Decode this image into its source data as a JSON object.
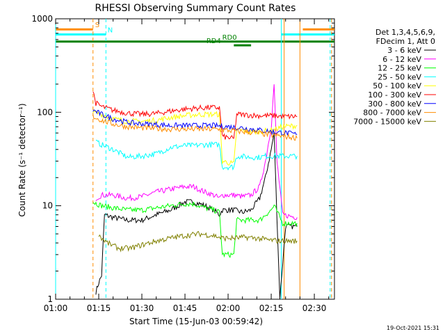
{
  "chart_data": {
    "type": "line",
    "title": "RHESSI Observing Summary Count Rates",
    "xlabel": "Start Time (15-Jun-03 00:59:42)",
    "ylabel": "Count Rate (s⁻¹ detector⁻¹)",
    "yscale": "log",
    "ylim": [
      1,
      1000
    ],
    "xlim_minutes": [
      0,
      97
    ],
    "x_ticks": [
      {
        "minute": 0,
        "label": "01:00"
      },
      {
        "minute": 15,
        "label": "01:15"
      },
      {
        "minute": 30,
        "label": "01:30"
      },
      {
        "minute": 45,
        "label": "01:45"
      },
      {
        "minute": 60,
        "label": "02:00"
      },
      {
        "minute": 75,
        "label": "02:15"
      },
      {
        "minute": 90,
        "label": "02:30"
      }
    ],
    "y_ticks": [
      {
        "value": 1,
        "label": "1"
      },
      {
        "value": 10,
        "label": "10"
      },
      {
        "value": 100,
        "label": "100"
      },
      {
        "value": 1000,
        "label": "1000"
      }
    ],
    "legend_header": [
      "Det 1,3,4,5,6,9,",
      "FDecim 1, Att 0"
    ],
    "series": [
      {
        "name": "3 - 6 keV",
        "color": "#000000",
        "points": [
          [
            14,
            1.2
          ],
          [
            15,
            1.5
          ],
          [
            16,
            1.8
          ],
          [
            17,
            8
          ],
          [
            20,
            7.5
          ],
          [
            25,
            7
          ],
          [
            30,
            7
          ],
          [
            35,
            8
          ],
          [
            40,
            9
          ],
          [
            45,
            11
          ],
          [
            48,
            11
          ],
          [
            52,
            10
          ],
          [
            55,
            9
          ],
          [
            57,
            8
          ],
          [
            58,
            9
          ],
          [
            62,
            9
          ],
          [
            65,
            8.5
          ],
          [
            68,
            9
          ],
          [
            71,
            12
          ],
          [
            73,
            20
          ],
          [
            75,
            40
          ],
          [
            76,
            60
          ],
          [
            78,
            1
          ],
          [
            80,
            6
          ],
          [
            84,
            6
          ]
        ]
      },
      {
        "name": "6 - 12 keV",
        "color": "#ff00ff",
        "points": [
          [
            14,
            12
          ],
          [
            16,
            13
          ],
          [
            20,
            13
          ],
          [
            25,
            12
          ],
          [
            30,
            12.5
          ],
          [
            35,
            14
          ],
          [
            40,
            15
          ],
          [
            45,
            16
          ],
          [
            48,
            16
          ],
          [
            52,
            14
          ],
          [
            55,
            13
          ],
          [
            57,
            12
          ],
          [
            58,
            13
          ],
          [
            62,
            13
          ],
          [
            65,
            12.5
          ],
          [
            68,
            13
          ],
          [
            71,
            16
          ],
          [
            73,
            30
          ],
          [
            75,
            70
          ],
          [
            76,
            200
          ],
          [
            77,
            30
          ],
          [
            79,
            8
          ],
          [
            84,
            7.5
          ]
        ]
      },
      {
        "name": "12 - 25 keV",
        "color": "#00ff00",
        "points": [
          [
            13,
            11
          ],
          [
            16,
            10
          ],
          [
            20,
            9.5
          ],
          [
            25,
            9
          ],
          [
            30,
            9
          ],
          [
            35,
            9.5
          ],
          [
            40,
            10
          ],
          [
            45,
            10.5
          ],
          [
            48,
            10.5
          ],
          [
            52,
            9.5
          ],
          [
            55,
            9
          ],
          [
            57,
            8.5
          ],
          [
            58,
            3
          ],
          [
            62,
            3
          ],
          [
            63,
            7
          ],
          [
            65,
            7
          ],
          [
            68,
            7
          ],
          [
            71,
            7
          ],
          [
            73,
            8
          ],
          [
            75,
            9
          ],
          [
            76,
            10
          ],
          [
            79,
            6.5
          ],
          [
            84,
            6.5
          ]
        ]
      },
      {
        "name": "25 - 50 keV",
        "color": "#00ffff",
        "points": [
          [
            14,
            48
          ],
          [
            16,
            45
          ],
          [
            20,
            40
          ],
          [
            25,
            33
          ],
          [
            30,
            34
          ],
          [
            35,
            36
          ],
          [
            40,
            42
          ],
          [
            45,
            44
          ],
          [
            48,
            44
          ],
          [
            52,
            45
          ],
          [
            55,
            45
          ],
          [
            57,
            45
          ],
          [
            58,
            26
          ],
          [
            62,
            26
          ],
          [
            63,
            34
          ],
          [
            68,
            33
          ],
          [
            71,
            33
          ],
          [
            73,
            34
          ],
          [
            76,
            34
          ],
          [
            79,
            34
          ],
          [
            84,
            34
          ]
        ]
      },
      {
        "name": "50 - 100 keV",
        "color": "#ffff00",
        "points": [
          [
            13,
            100
          ],
          [
            16,
            95
          ],
          [
            20,
            85
          ],
          [
            25,
            80
          ],
          [
            30,
            80
          ],
          [
            35,
            82
          ],
          [
            40,
            88
          ],
          [
            45,
            92
          ],
          [
            48,
            94
          ],
          [
            52,
            95
          ],
          [
            55,
            95
          ],
          [
            57,
            95
          ],
          [
            58,
            30
          ],
          [
            62,
            28
          ],
          [
            63,
            65
          ],
          [
            68,
            62
          ],
          [
            71,
            62
          ],
          [
            73,
            63
          ],
          [
            76,
            65
          ],
          [
            79,
            70
          ],
          [
            84,
            72
          ]
        ]
      },
      {
        "name": "100 - 300 keV",
        "color": "#ff0000",
        "points": [
          [
            13,
            170
          ],
          [
            14,
            125
          ],
          [
            16,
            115
          ],
          [
            20,
            105
          ],
          [
            25,
            98
          ],
          [
            30,
            95
          ],
          [
            35,
            97
          ],
          [
            40,
            103
          ],
          [
            45,
            108
          ],
          [
            48,
            110
          ],
          [
            52,
            112
          ],
          [
            55,
            112
          ],
          [
            57,
            112
          ],
          [
            58,
            55
          ],
          [
            62,
            52
          ],
          [
            63,
            95
          ],
          [
            68,
            93
          ],
          [
            71,
            92
          ],
          [
            73,
            92
          ],
          [
            76,
            92
          ],
          [
            79,
            90
          ],
          [
            84,
            90
          ]
        ]
      },
      {
        "name": "300 - 800 keV",
        "color": "#0000ff",
        "points": [
          [
            13,
            105
          ],
          [
            16,
            95
          ],
          [
            20,
            85
          ],
          [
            25,
            78
          ],
          [
            30,
            75
          ],
          [
            35,
            74
          ],
          [
            40,
            72
          ],
          [
            45,
            72
          ],
          [
            50,
            72
          ],
          [
            55,
            72
          ],
          [
            60,
            70
          ],
          [
            65,
            68
          ],
          [
            70,
            65
          ],
          [
            75,
            62
          ],
          [
            80,
            60
          ],
          [
            84,
            58
          ]
        ]
      },
      {
        "name": "800 - 7000 keV",
        "color": "#ff8c00",
        "points": [
          [
            13,
            90
          ],
          [
            16,
            82
          ],
          [
            20,
            75
          ],
          [
            25,
            70
          ],
          [
            30,
            68
          ],
          [
            35,
            67
          ],
          [
            40,
            66
          ],
          [
            45,
            66
          ],
          [
            50,
            66
          ],
          [
            55,
            66
          ],
          [
            60,
            64
          ],
          [
            65,
            62
          ],
          [
            70,
            60
          ],
          [
            75,
            57
          ],
          [
            80,
            55
          ],
          [
            84,
            53
          ]
        ]
      },
      {
        "name": "7000 - 15000 keV",
        "color": "#808000",
        "points": [
          [
            15,
            5
          ],
          [
            16,
            4.5
          ],
          [
            18,
            4
          ],
          [
            22,
            3.5
          ],
          [
            26,
            3.5
          ],
          [
            30,
            3.8
          ],
          [
            35,
            4.2
          ],
          [
            40,
            4.5
          ],
          [
            45,
            4.8
          ],
          [
            50,
            5
          ],
          [
            55,
            4.8
          ],
          [
            58,
            4.5
          ],
          [
            62,
            4.5
          ],
          [
            66,
            4.6
          ],
          [
            70,
            4.5
          ],
          [
            74,
            4.3
          ],
          [
            78,
            4.2
          ],
          [
            82,
            4.2
          ],
          [
            84,
            4.2
          ]
        ]
      }
    ],
    "vertical_markers": [
      {
        "minute": 13,
        "color": "#ff8c00",
        "style": "dashed"
      },
      {
        "minute": 17.5,
        "color": "#00ffff",
        "style": "dashed"
      },
      {
        "minute": 0,
        "color": "#00ffff",
        "style": "solid"
      },
      {
        "minute": 78.5,
        "color": "#00ffff",
        "style": "solid"
      },
      {
        "minute": 79.5,
        "color": "#ff8c00",
        "style": "solid"
      },
      {
        "minute": 85,
        "color": "#ff8c00",
        "style": "solid"
      },
      {
        "minute": 95.5,
        "color": "#00ffff",
        "style": "dashed"
      },
      {
        "minute": 96,
        "color": "#ff8c00",
        "style": "dashed"
      }
    ],
    "flag_bars": [
      {
        "label": "S",
        "color": "#ff8c00",
        "value": 770,
        "segments": [
          [
            0,
            13
          ],
          [
            86,
            97
          ]
        ],
        "label_minute": 14.5
      },
      {
        "label": "N",
        "color": "#00ffff",
        "value": 680,
        "segments": [
          [
            0,
            17.5
          ],
          [
            78.5,
            97
          ]
        ],
        "label_minute": 19
      },
      {
        "label": "RD0",
        "color": "#008000",
        "value": 570,
        "segments": [
          [
            0,
            97
          ]
        ],
        "label_minute": 60.5
      },
      {
        "label": "RD4",
        "color": "#008000",
        "value": 520,
        "segments": [
          [
            62,
            68
          ]
        ],
        "label_minute": 55
      }
    ],
    "footer": "19-Oct-2021 15:31"
  }
}
